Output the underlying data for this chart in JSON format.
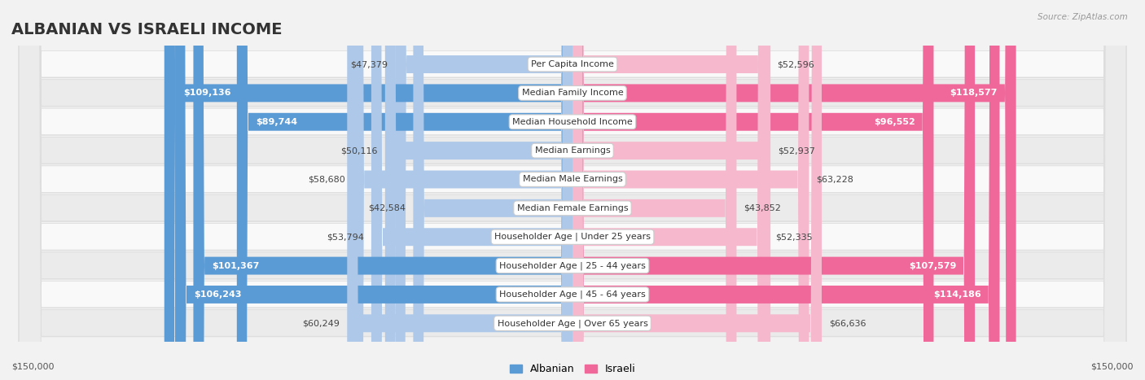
{
  "title": "ALBANIAN VS ISRAELI INCOME",
  "source": "Source: ZipAtlas.com",
  "categories": [
    "Per Capita Income",
    "Median Family Income",
    "Median Household Income",
    "Median Earnings",
    "Median Male Earnings",
    "Median Female Earnings",
    "Householder Age | Under 25 years",
    "Householder Age | 25 - 44 years",
    "Householder Age | 45 - 64 years",
    "Householder Age | Over 65 years"
  ],
  "albanian_values": [
    47379,
    109136,
    89744,
    50116,
    58680,
    42584,
    53794,
    101367,
    106243,
    60249
  ],
  "israeli_values": [
    52596,
    118577,
    96552,
    52937,
    63228,
    43852,
    52335,
    107579,
    114186,
    66636
  ],
  "albanian_labels": [
    "$47,379",
    "$109,136",
    "$89,744",
    "$50,116",
    "$58,680",
    "$42,584",
    "$53,794",
    "$101,367",
    "$106,243",
    "$60,249"
  ],
  "israeli_labels": [
    "$52,596",
    "$118,577",
    "$96,552",
    "$52,937",
    "$63,228",
    "$43,852",
    "$52,335",
    "$107,579",
    "$114,186",
    "$66,636"
  ],
  "albanian_color_light": "#adc8e8",
  "albanian_color_dark": "#5b9bd5",
  "israeli_color_light": "#f5b8cc",
  "israeli_color_dark": "#f0679a",
  "max_value": 150000,
  "bar_height": 0.62,
  "background_color": "#f2f2f2",
  "row_bg_odd": "#f9f9f9",
  "row_bg_even": "#ebebeb",
  "legend_albanian": "Albanian",
  "legend_israeli": "Israeli",
  "xlabel_left": "$150,000",
  "xlabel_right": "$150,000",
  "threshold": 75000,
  "title_fontsize": 14,
  "label_fontsize": 8,
  "cat_fontsize": 8
}
